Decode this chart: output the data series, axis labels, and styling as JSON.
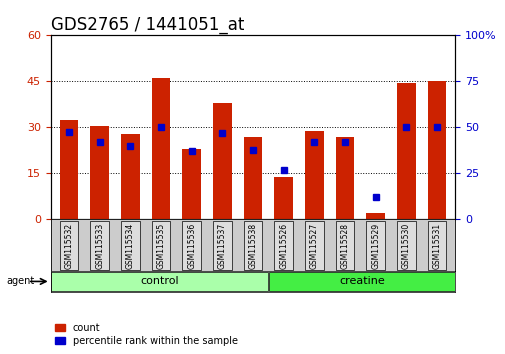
{
  "title": "GDS2765 / 1441051_at",
  "categories": [
    "GSM115532",
    "GSM115533",
    "GSM115534",
    "GSM115535",
    "GSM115536",
    "GSM115537",
    "GSM115538",
    "GSM115526",
    "GSM115527",
    "GSM115528",
    "GSM115529",
    "GSM115530",
    "GSM115531"
  ],
  "count_values": [
    32.5,
    30.5,
    28.0,
    46.0,
    23.0,
    38.0,
    27.0,
    14.0,
    29.0,
    27.0,
    2.0,
    44.5,
    45.0
  ],
  "percentile_values": [
    47.5,
    42.0,
    40.0,
    50.0,
    37.0,
    47.0,
    38.0,
    27.0,
    42.0,
    42.0,
    12.0,
    50.0,
    50.0
  ],
  "bar_color": "#cc2200",
  "marker_color": "#0000cc",
  "bar_width": 0.6,
  "ylim_left": [
    0,
    60
  ],
  "ylim_right": [
    0,
    100
  ],
  "yticks_left": [
    0,
    15,
    30,
    45,
    60
  ],
  "yticks_right": [
    0,
    25,
    50,
    75,
    100
  ],
  "background_color": "#ffffff",
  "legend_items": [
    "count",
    "percentile rank within the sample"
  ],
  "legend_colors": [
    "#cc2200",
    "#0000cc"
  ],
  "agent_label": "agent",
  "title_fontsize": 12,
  "tick_fontsize": 8,
  "control_color": "#aaffaa",
  "creatine_color": "#44ee44"
}
